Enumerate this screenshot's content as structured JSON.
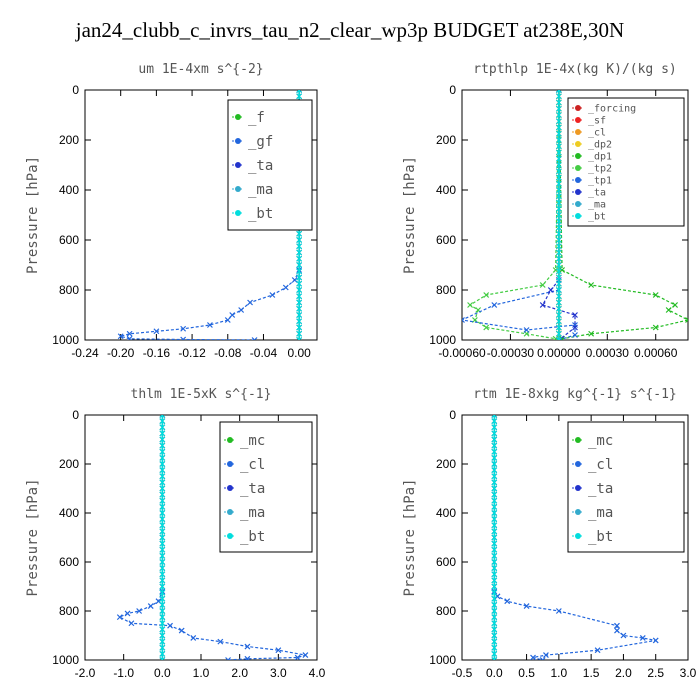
{
  "page_title": "jan24_clubb_c_invrs_tau_n2_clear_wp3p  BUDGET at238E,30N",
  "chart_data": [
    {
      "type": "line",
      "title": "um   1E-4xm s^{-2}",
      "ylabel": "Pressure [hPa]",
      "xlim": [
        -0.24,
        0.02
      ],
      "ylim": [
        1000,
        0
      ],
      "xticks": [
        "-0.24",
        "-0.20",
        "-0.16",
        "-0.12",
        "-0.08",
        "-0.04",
        "0.00"
      ],
      "xtick_values": [
        -0.24,
        -0.2,
        -0.16,
        -0.12,
        -0.08,
        -0.04,
        0.0
      ],
      "yticks": [
        "0",
        "200",
        "400",
        "600",
        "800",
        "1000"
      ],
      "ytick_values": [
        0,
        200,
        400,
        600,
        800,
        1000
      ],
      "legend_position": "top-right",
      "legend_font": 14,
      "series": [
        {
          "name": "_f",
          "color": "#22bb22",
          "marker": "x",
          "x": [
            0,
            0
          ],
          "y": [
            0,
            1000
          ]
        },
        {
          "name": "_gf",
          "color": "#2266dd",
          "marker": "x",
          "x": [
            0,
            0,
            -0.005,
            -0.015,
            -0.03,
            -0.055,
            -0.065,
            -0.075,
            -0.08,
            -0.1,
            -0.13,
            -0.16,
            -0.19,
            -0.2,
            -0.19,
            -0.13,
            -0.05
          ],
          "y": [
            0,
            720,
            760,
            790,
            820,
            850,
            880,
            900,
            920,
            940,
            955,
            965,
            975,
            985,
            995,
            998,
            1000
          ]
        },
        {
          "name": "_ta",
          "color": "#2233cc",
          "marker": "x",
          "x": [
            0,
            0
          ],
          "y": [
            0,
            1000
          ]
        },
        {
          "name": "_ma",
          "color": "#33aacc",
          "marker": "x",
          "x": [
            0,
            0
          ],
          "y": [
            0,
            1000
          ]
        },
        {
          "name": "_bt",
          "color": "#00dddd",
          "marker": "x",
          "x": [
            0,
            0
          ],
          "y": [
            0,
            1000
          ]
        }
      ]
    },
    {
      "type": "line",
      "title": "rtpthlp   1E-4x(kg K)/(kg s)",
      "ylabel": "Pressure [hPa]",
      "xlim": [
        -0.0006,
        0.0008
      ],
      "ylim": [
        1000,
        0
      ],
      "xticks": [
        "-0.00060",
        "-0.00030",
        "0.00000",
        "0.00030",
        "0.00060"
      ],
      "xtick_values": [
        -0.0006,
        -0.0003,
        0.0,
        0.0003,
        0.0006
      ],
      "yticks": [
        "0",
        "200",
        "400",
        "600",
        "800",
        "1000"
      ],
      "ytick_values": [
        0,
        200,
        400,
        600,
        800,
        1000
      ],
      "legend_position": "top-right",
      "legend_font": 10,
      "series": [
        {
          "name": "_forcing",
          "color": "#cc2222",
          "marker": "x",
          "x": [
            0,
            0
          ],
          "y": [
            0,
            1000
          ]
        },
        {
          "name": "_sf",
          "color": "#ee2222",
          "marker": "x",
          "x": [
            0,
            0
          ],
          "y": [
            0,
            1000
          ]
        },
        {
          "name": "_cl",
          "color": "#ee9922",
          "marker": "x",
          "x": [
            0,
            0
          ],
          "y": [
            0,
            1000
          ]
        },
        {
          "name": "_dp2",
          "color": "#eecc22",
          "marker": "x",
          "x": [
            0,
            0
          ],
          "y": [
            0,
            1000
          ]
        },
        {
          "name": "_dp1",
          "color": "#22bb22",
          "marker": "x",
          "x": [
            0,
            2e-05,
            0.0002,
            0.0006,
            0.00072,
            0.00068,
            0.0008,
            0.0006,
            0.0002,
            2e-05,
            0
          ],
          "y": [
            0,
            720,
            780,
            820,
            860,
            880,
            920,
            950,
            975,
            995,
            1000
          ]
        },
        {
          "name": "_tp2",
          "color": "#44cc44",
          "marker": "x",
          "x": [
            0,
            -2e-05,
            -0.0001,
            -0.00045,
            -0.00055,
            -0.0005,
            -0.00052,
            -0.00045,
            -0.0002,
            -2e-05,
            0
          ],
          "y": [
            0,
            720,
            780,
            820,
            860,
            880,
            920,
            950,
            975,
            995,
            1000
          ]
        },
        {
          "name": "_tp1",
          "color": "#2266dd",
          "marker": "x",
          "x": [
            0,
            0,
            -0.0004,
            -0.0006,
            -0.0002,
            0.0001,
            0.0001,
            0
          ],
          "y": [
            0,
            800,
            860,
            920,
            960,
            940,
            980,
            1000
          ]
        },
        {
          "name": "_ta",
          "color": "#2233cc",
          "marker": "x",
          "x": [
            0,
            0,
            -5e-05,
            -0.0001,
            0.0001,
            0.0001,
            0
          ],
          "y": [
            0,
            760,
            800,
            860,
            900,
            950,
            1000
          ]
        },
        {
          "name": "_ma",
          "color": "#33aacc",
          "marker": "x",
          "x": [
            0,
            0
          ],
          "y": [
            0,
            1000
          ]
        },
        {
          "name": "_bt",
          "color": "#00dddd",
          "marker": "x",
          "x": [
            0,
            0
          ],
          "y": [
            0,
            1000
          ]
        }
      ]
    },
    {
      "type": "line",
      "title": "thlm   1E-5xK s^{-1}",
      "ylabel": "Pressure [hPa]",
      "xlim": [
        -2.0,
        4.0
      ],
      "ylim": [
        1000,
        0
      ],
      "xticks": [
        "-2.0",
        "-1.0",
        "0.0",
        "1.0",
        "2.0",
        "3.0",
        "4.0"
      ],
      "xtick_values": [
        -2.0,
        -1.0,
        0.0,
        1.0,
        2.0,
        3.0,
        4.0
      ],
      "yticks": [
        "0",
        "200",
        "400",
        "600",
        "800",
        "1000"
      ],
      "ytick_values": [
        0,
        200,
        400,
        600,
        800,
        1000
      ],
      "legend_position": "top-right",
      "legend_font": 14,
      "series": [
        {
          "name": "_mc",
          "color": "#22bb22",
          "marker": "x",
          "x": [
            0,
            0
          ],
          "y": [
            0,
            1000
          ]
        },
        {
          "name": "_cl",
          "color": "#2266dd",
          "marker": "x",
          "x": [
            0,
            0,
            -0.1,
            -0.3,
            -0.6,
            -0.9,
            -1.1,
            -0.8,
            0.2,
            0.5,
            0.8,
            1.5,
            2.2,
            3.0,
            3.7,
            3.5,
            2.2,
            1.7
          ],
          "y": [
            0,
            720,
            760,
            780,
            800,
            810,
            825,
            850,
            860,
            880,
            910,
            925,
            945,
            960,
            980,
            990,
            995,
            1000
          ]
        },
        {
          "name": "_ta",
          "color": "#2233cc",
          "marker": "x",
          "x": [
            0,
            0
          ],
          "y": [
            0,
            1000
          ]
        },
        {
          "name": "_ma",
          "color": "#33aacc",
          "marker": "x",
          "x": [
            0,
            0
          ],
          "y": [
            0,
            1000
          ]
        },
        {
          "name": "_bt",
          "color": "#00dddd",
          "marker": "x",
          "x": [
            0,
            0
          ],
          "y": [
            0,
            1000
          ]
        }
      ]
    },
    {
      "type": "line",
      "title": "rtm   1E-8xkg kg^{-1} s^{-1}",
      "ylabel": "Pressure [hPa]",
      "xlim": [
        -0.5,
        3.0
      ],
      "ylim": [
        1000,
        0
      ],
      "xticks": [
        "-0.5",
        "0.0",
        "0.5",
        "1.0",
        "1.5",
        "2.0",
        "2.5",
        "3.0"
      ],
      "xtick_values": [
        -0.5,
        0.0,
        0.5,
        1.0,
        1.5,
        2.0,
        2.5,
        3.0
      ],
      "yticks": [
        "0",
        "200",
        "400",
        "600",
        "800",
        "1000"
      ],
      "ytick_values": [
        0,
        200,
        400,
        600,
        800,
        1000
      ],
      "legend_position": "top-right",
      "legend_font": 14,
      "series": [
        {
          "name": "_mc",
          "color": "#22bb22",
          "marker": "x",
          "x": [
            0,
            0
          ],
          "y": [
            0,
            1000
          ]
        },
        {
          "name": "_cl",
          "color": "#2266dd",
          "marker": "x",
          "x": [
            0,
            0,
            0.05,
            0.2,
            0.5,
            1.0,
            1.9,
            1.9,
            2.0,
            2.3,
            2.5,
            1.6,
            0.8,
            0.6,
            0.75
          ],
          "y": [
            0,
            720,
            740,
            760,
            780,
            800,
            860,
            880,
            900,
            910,
            920,
            960,
            980,
            990,
            1000
          ]
        },
        {
          "name": "_ta",
          "color": "#2233cc",
          "marker": "x",
          "x": [
            0,
            0
          ],
          "y": [
            0,
            1000
          ]
        },
        {
          "name": "_ma",
          "color": "#33aacc",
          "marker": "x",
          "x": [
            0,
            0
          ],
          "y": [
            0,
            1000
          ]
        },
        {
          "name": "_bt",
          "color": "#00dddd",
          "marker": "x",
          "x": [
            0,
            0
          ],
          "y": [
            0,
            1000
          ]
        }
      ]
    }
  ]
}
